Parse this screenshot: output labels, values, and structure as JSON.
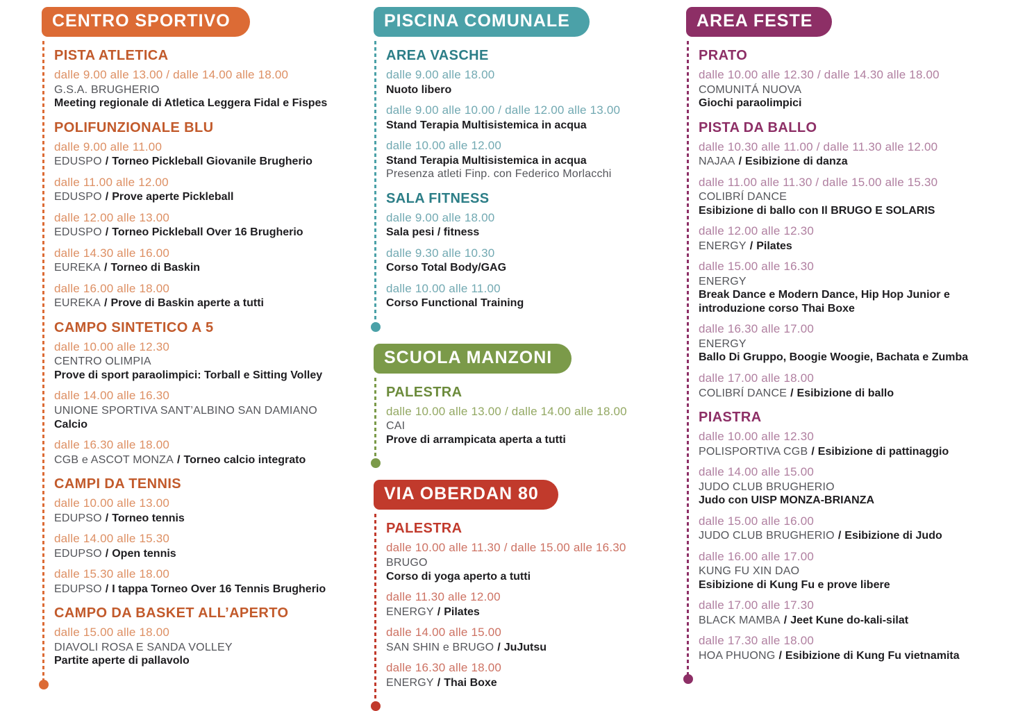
{
  "page": {
    "background": "#ffffff",
    "separator": "/",
    "colors": {
      "orange": "#DC6B35",
      "teal": "#4BA1A8",
      "green": "#7B9A49",
      "red": "#C13A2C",
      "purple": "#8D2F66",
      "org_text": "#54555A",
      "desc_text": "#1E1D20"
    }
  },
  "columns": [
    {
      "blocks": [
        {
          "title": "CENTRO SPORTIVO",
          "color": "#DC6B35",
          "venues": [
            {
              "name": "PISTA ATLETICA",
              "events": [
                {
                  "time": "dalle 9.00 alle 13.00 / dalle 14.00 alle 18.00",
                  "org": "G.S.A. BRUGHERIO",
                  "desc": "Meeting regionale di Atletica Leggera Fidal e Fispes"
                }
              ]
            },
            {
              "name": "POLIFUNZIONALE BLU",
              "events": [
                {
                  "time": "dalle 9.00 alle 11.00",
                  "org": "EDUSPO",
                  "desc": "Torneo Pickleball Giovanile Brugherio"
                },
                {
                  "time": "dalle 11.00 alle 12.00",
                  "org": "EDUSPO",
                  "desc": "Prove aperte Pickleball"
                },
                {
                  "time": "dalle 12.00 alle 13.00",
                  "org": "EDUSPO",
                  "desc": "Torneo Pickleball Over 16 Brugherio"
                },
                {
                  "time": "dalle 14.30 alle 16.00",
                  "org": "EUREKA",
                  "desc": "Torneo di Baskin"
                },
                {
                  "time": "dalle 16.00 alle 18.00",
                  "org": "EUREKA",
                  "desc": "Prove di Baskin aperte a tutti"
                }
              ]
            },
            {
              "name": "CAMPO SINTETICO A 5",
              "events": [
                {
                  "time": "dalle 10.00 alle 12.30",
                  "org": "CENTRO OLIMPIA",
                  "desc": "Prove di sport paraolimpici: Torball e Sitting Volley"
                },
                {
                  "time": "dalle 14.00 alle 16.30",
                  "org": "UNIONE SPORTIVA SANT’ALBINO SAN DAMIANO",
                  "desc": "Calcio"
                },
                {
                  "time": "dalle 16.30 alle 18.00",
                  "org": "CGB e ASCOT MONZA",
                  "desc": "Torneo calcio integrato"
                }
              ]
            },
            {
              "name": "CAMPI DA TENNIS",
              "events": [
                {
                  "time": "dalle 10.00 alle 13.00",
                  "org": "EDUPSO",
                  "desc": "Torneo tennis"
                },
                {
                  "time": "dalle 14.00 alle 15.30",
                  "org": "EDUPSO",
                  "desc": "Open tennis"
                },
                {
                  "time": "dalle 15.30 alle 18.00",
                  "org": "EDUPSO",
                  "desc": "I tappa Torneo Over 16 Tennis Brugherio"
                }
              ]
            },
            {
              "name": "CAMPO DA BASKET ALL’APERTO",
              "events": [
                {
                  "time": "dalle 15.00 alle 18.00",
                  "org": "DIAVOLI ROSA E SANDA VOLLEY",
                  "desc": "Partite aperte di pallavolo"
                }
              ]
            }
          ]
        }
      ]
    },
    {
      "blocks": [
        {
          "title": "PISCINA COMUNALE",
          "color": "#4BA1A8",
          "venues": [
            {
              "name": "AREA VASCHE",
              "events": [
                {
                  "time": "dalle 9.00 alle 18.00",
                  "desc": "Nuoto libero"
                },
                {
                  "time": "dalle 9.00 alle 10.00 / dalle 12.00 alle 13.00",
                  "desc": "Stand Terapia Multisistemica in acqua"
                },
                {
                  "time": "dalle 10.00 alle 12.00",
                  "desc": "Stand Terapia Multisistemica in acqua",
                  "note": "Presenza atleti Finp. con Federico Morlacchi"
                }
              ]
            },
            {
              "name": "SALA FITNESS",
              "events": [
                {
                  "time": "dalle 9.00 alle 18.00",
                  "desc": "Sala pesi / fitness"
                },
                {
                  "time": "dalle 9.30 alle 10.30",
                  "desc": "Corso Total Body/GAG"
                },
                {
                  "time": "dalle 10.00 alle 11.00",
                  "desc": "Corso Functional Training"
                }
              ]
            }
          ]
        },
        {
          "title": "SCUOLA MANZONI",
          "color": "#7B9A49",
          "venues": [
            {
              "name": "PALESTRA",
              "events": [
                {
                  "time": "dalle 10.00 alle 13.00 / dalle 14.00 alle 18.00",
                  "org": "CAI",
                  "desc": "Prove di arrampicata aperta a tutti"
                }
              ]
            }
          ]
        },
        {
          "title": "VIA OBERDAN 80",
          "color": "#C13A2C",
          "venues": [
            {
              "name": "PALESTRA",
              "events": [
                {
                  "time": "dalle 10.00 alle 11.30 / dalle 15.00 alle 16.30",
                  "org": "BRUGO",
                  "desc": "Corso di yoga aperto a tutti"
                },
                {
                  "time": "dalle 11.30 alle 12.00",
                  "org": "ENERGY",
                  "desc": "Pilates"
                },
                {
                  "time": "dalle 14.00 alle 15.00",
                  "org": "SAN SHIN e BRUGO",
                  "desc": "JuJutsu"
                },
                {
                  "time": "dalle 16.30 alle 18.00",
                  "org": "ENERGY",
                  "desc": "Thai Boxe"
                }
              ]
            }
          ]
        }
      ]
    },
    {
      "blocks": [
        {
          "title": "AREA FESTE",
          "color": "#8D2F66",
          "venues": [
            {
              "name": "PRATO",
              "events": [
                {
                  "time": "dalle 10.00 alle 12.30 / dalle 14.30 alle 18.00",
                  "org": "COMUNITÁ NUOVA",
                  "desc": "Giochi paraolimpici"
                }
              ]
            },
            {
              "name": "PISTA DA BALLO",
              "events": [
                {
                  "time": "dalle 10.30 alle 11.00 / dalle 11.30 alle 12.00",
                  "org": "NAJAA",
                  "desc": "Esibizione di danza"
                },
                {
                  "time": "dalle 11.00 alle 11.30 / dalle 15.00 alle 15.30",
                  "org": "COLIBRÍ DANCE",
                  "desc": "Esibizione di ballo con Il BRUGO E SOLARIS"
                },
                {
                  "time": "dalle 12.00 alle 12.30",
                  "org": "ENERGY",
                  "desc": "Pilates"
                },
                {
                  "time": "dalle 15.00 alle 16.30",
                  "org": "ENERGY",
                  "desc": "Break Dance e Modern Dance, Hip Hop Junior e introduzione corso Thai Boxe"
                },
                {
                  "time": "dalle 16.30 alle 17.00",
                  "org": "ENERGY",
                  "desc": "Ballo Di Gruppo, Boogie Woogie, Bachata e Zumba"
                },
                {
                  "time": "dalle 17.00 alle 18.00",
                  "org": "COLIBRÍ DANCE",
                  "desc": "Esibizione di ballo"
                }
              ]
            },
            {
              "name": "PIASTRA",
              "events": [
                {
                  "time": "dalle 10.00 alle 12.30",
                  "org": "POLISPORTIVA CGB",
                  "desc": "Esibizione di pattinaggio"
                },
                {
                  "time": "dalle 14.00 alle 15.00",
                  "org": "JUDO CLUB BRUGHERIO",
                  "desc": "Judo con UISP MONZA-BRIANZA"
                },
                {
                  "time": "dalle 15.00 alle 16.00",
                  "org": "JUDO CLUB BRUGHERIO",
                  "desc": "Esibizione di Judo"
                },
                {
                  "time": "dalle 16.00 alle 17.00",
                  "org": "KUNG FU XIN DAO",
                  "desc": "Esibizione di Kung Fu e prove libere"
                },
                {
                  "time": "dalle 17.00 alle 17.30",
                  "org": "BLACK MAMBA",
                  "desc": "Jeet Kune do-kali-silat"
                },
                {
                  "time": "dalle 17.30 alle 18.00",
                  "org": "HOA PHUONG",
                  "desc": "Esibizione di Kung Fu vietnamita"
                }
              ]
            }
          ]
        }
      ]
    }
  ]
}
